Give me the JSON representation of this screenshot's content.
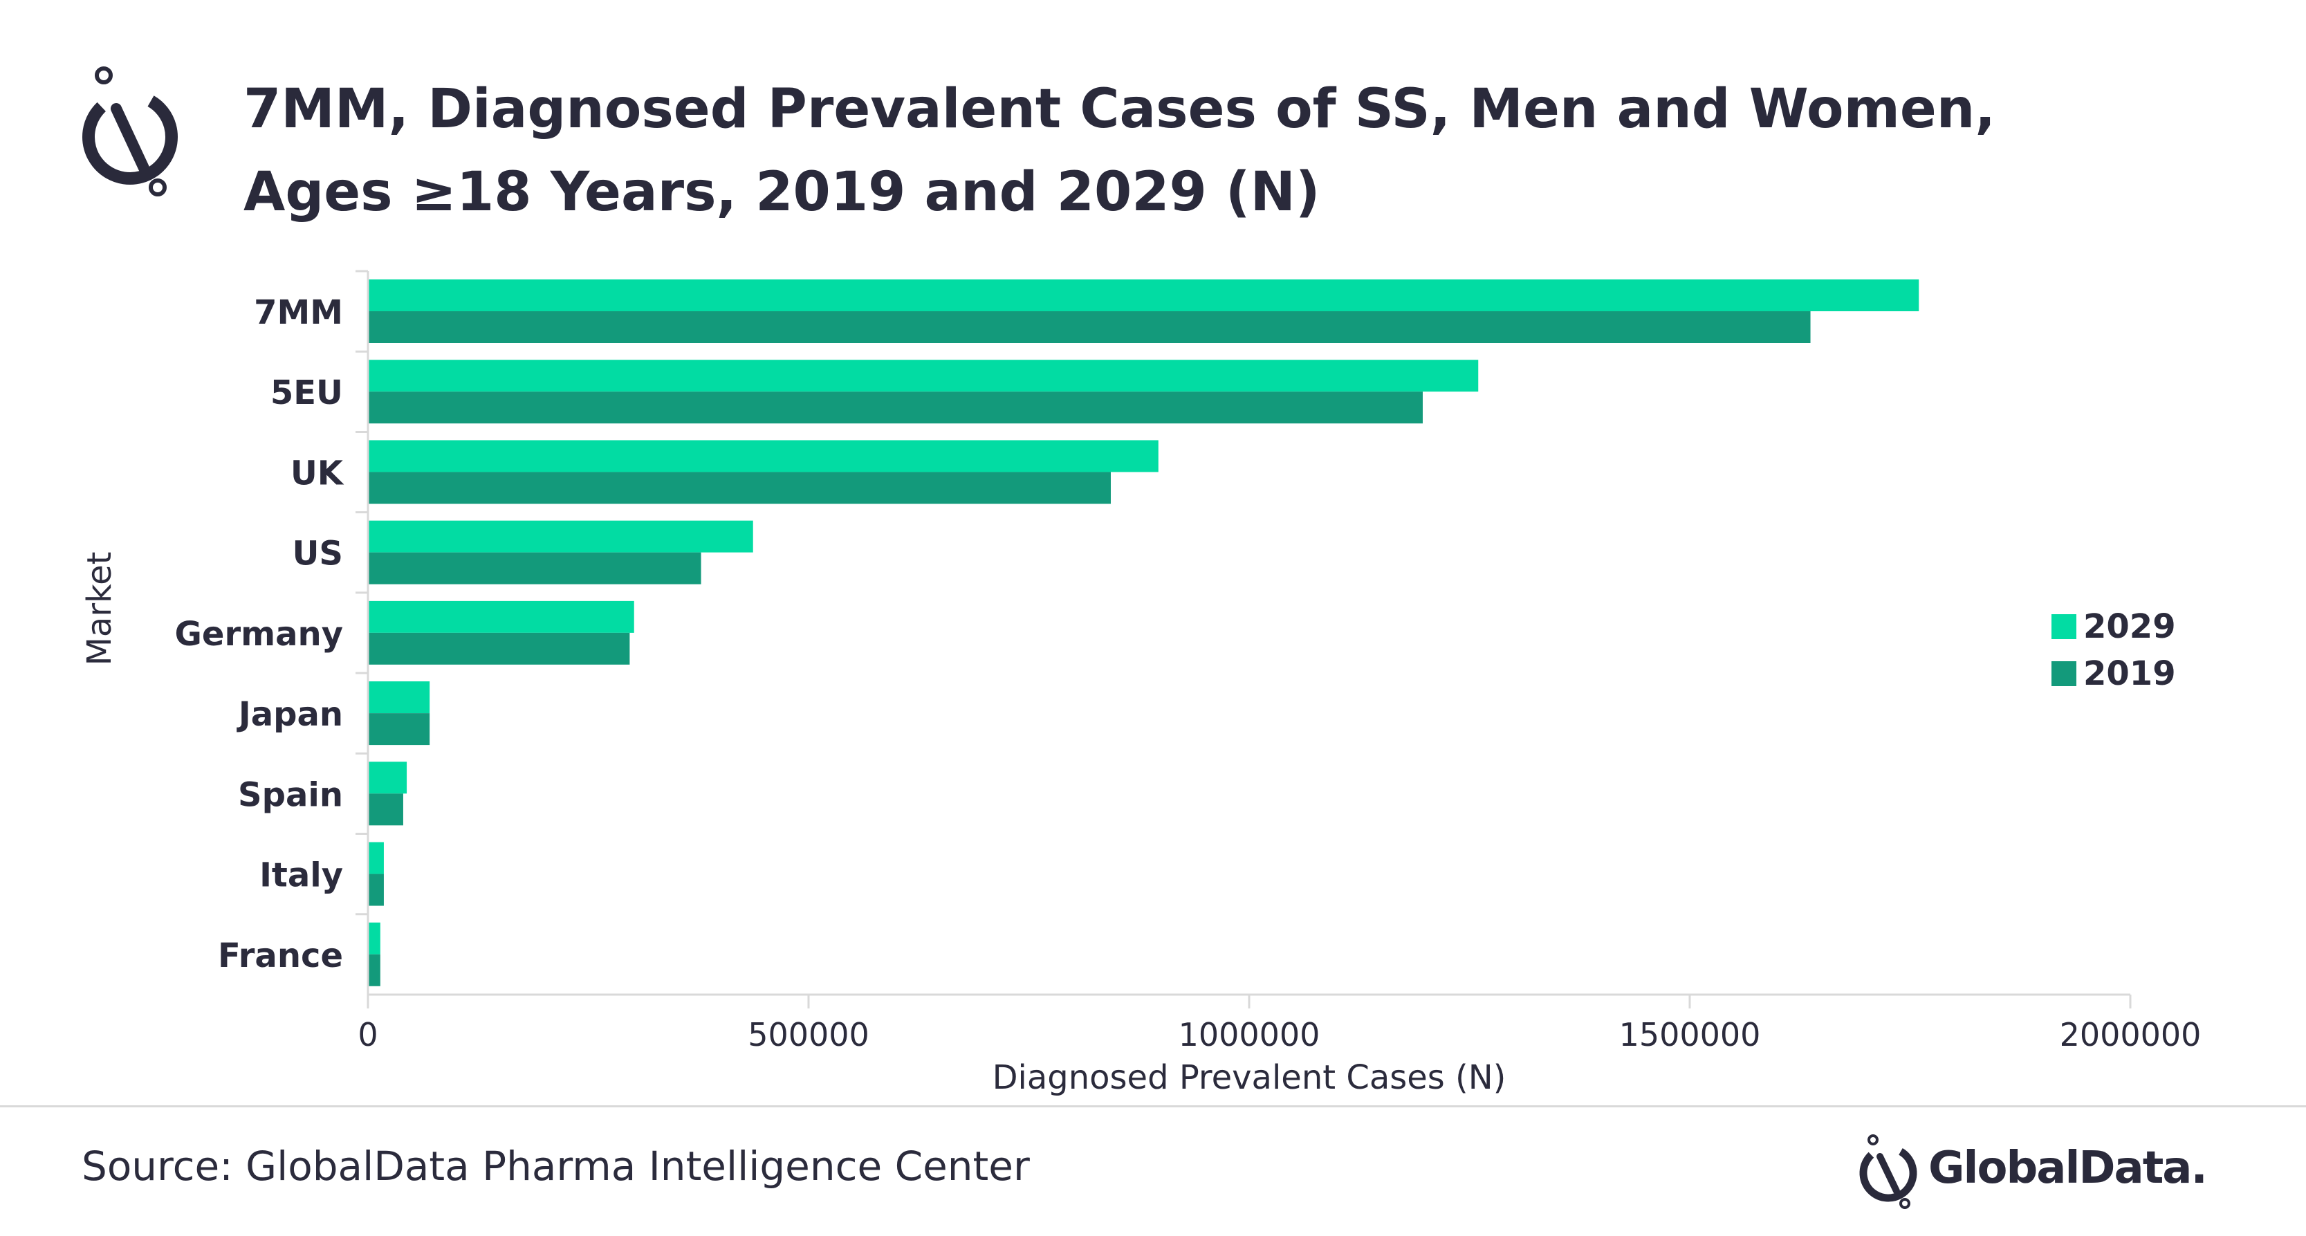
{
  "title_lines": [
    "7MM, Diagnosed Prevalent Cases of SS, Men and Women,",
    "Ages ≥18 Years, 2019 and 2029 (N)"
  ],
  "source": "Source: GlobalData Pharma Intelligence Center",
  "brand": {
    "name": "GlobalData.",
    "icon": "globaldata-logo-icon"
  },
  "colors": {
    "s2029": "#02dca3",
    "s2019": "#139a7b",
    "text": "#2b2b3c",
    "axis": "#d9d9d9"
  },
  "chart_data": {
    "type": "bar",
    "orientation": "horizontal",
    "title": "7MM, Diagnosed Prevalent Cases of SS, Men and Women, Ages ≥18 Years, 2019 and 2029 (N)",
    "xlabel": "Diagnosed Prevalent Cases (N)",
    "ylabel": "Market",
    "xlim": [
      0,
      2000000
    ],
    "xticks": [
      "0",
      "500000",
      "1000000",
      "1500000",
      "2000000"
    ],
    "xtick_values": [
      0,
      500000,
      1000000,
      1500000,
      2000000
    ],
    "grid": false,
    "legend_position": "right",
    "categories": [
      "7MM",
      "5EU",
      "UK",
      "US",
      "Germany",
      "Japan",
      "Spain",
      "Italy",
      "France"
    ],
    "series": [
      {
        "name": "2029",
        "color": "#02dca3",
        "values": [
          1760000,
          1260000,
          897000,
          437000,
          302000,
          70000,
          44000,
          18000,
          14000
        ]
      },
      {
        "name": "2019",
        "color": "#139a7b",
        "values": [
          1637000,
          1197000,
          843000,
          378000,
          297000,
          70000,
          40000,
          18000,
          14000
        ]
      }
    ]
  }
}
